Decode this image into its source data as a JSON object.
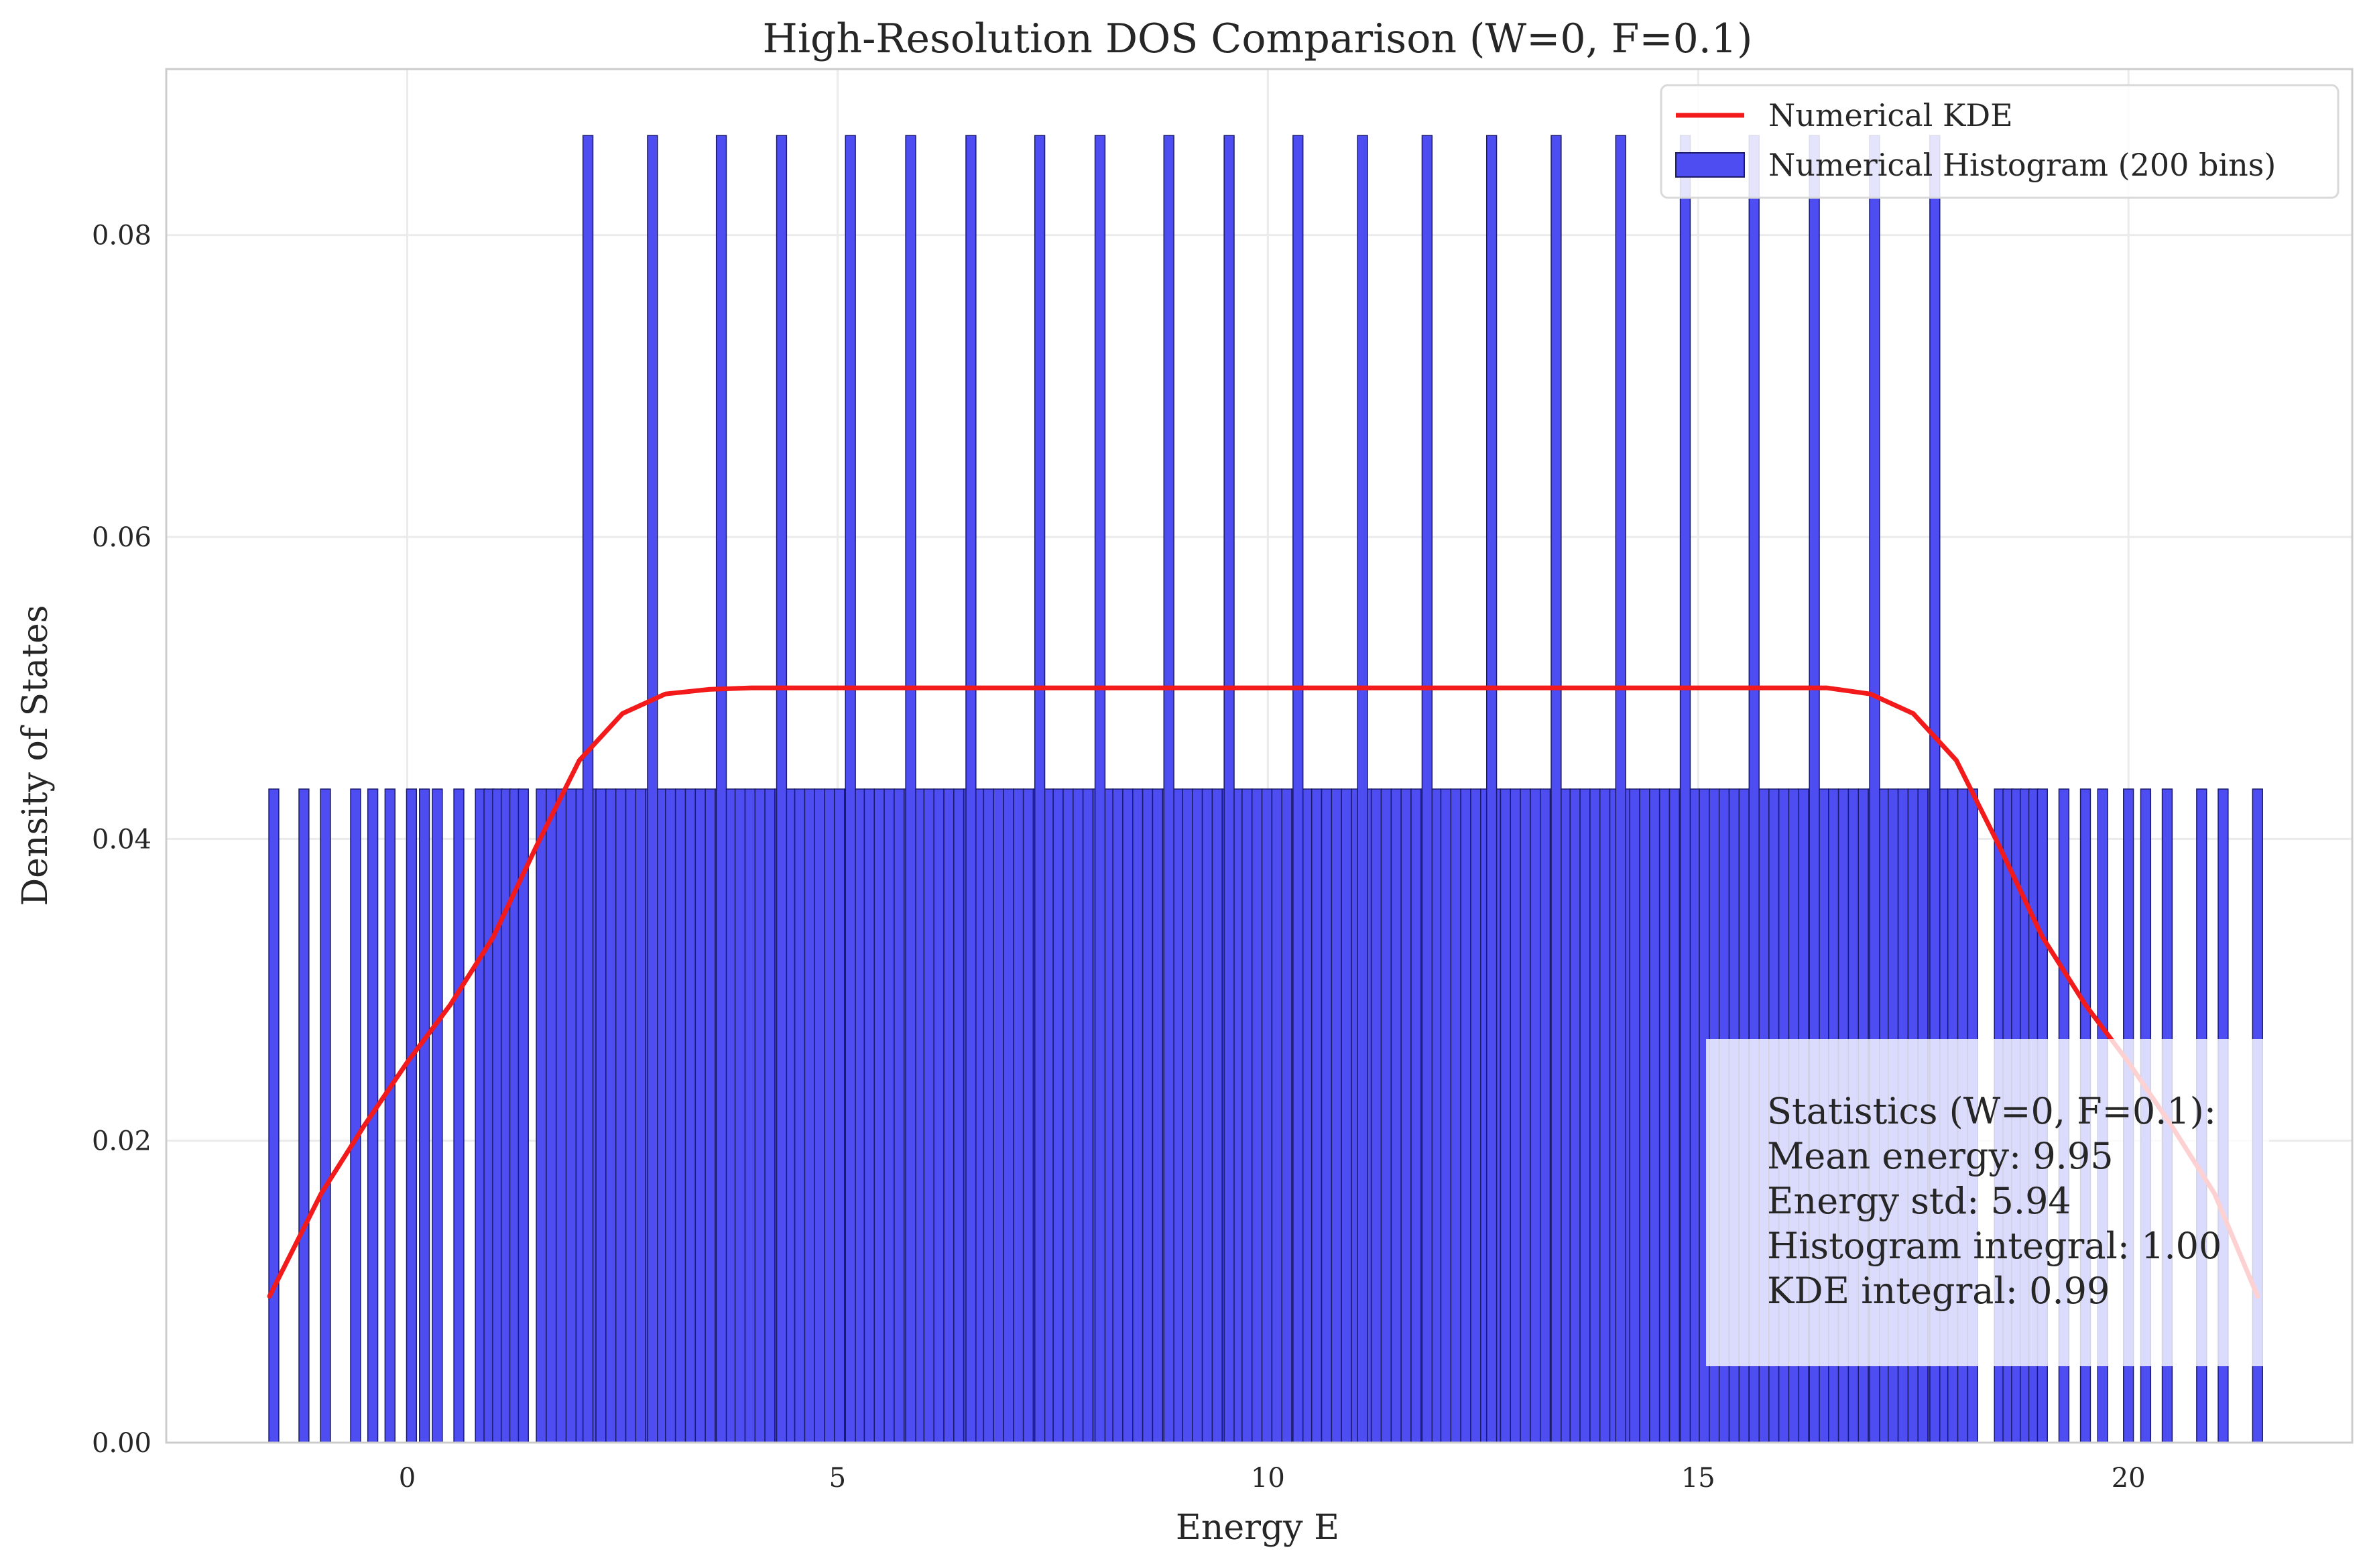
{
  "chart_data": {
    "type": "bar",
    "title": "High-Resolution DOS Comparison (W=0, F=0.1)",
    "xlabel": "Energy E",
    "ylabel": "Density of States",
    "xlim": [
      -2.8,
      22.6
    ],
    "ylim": [
      0,
      0.091
    ],
    "xticks": [
      0,
      5,
      10,
      15,
      20
    ],
    "xtick_labels": [
      "0",
      "5",
      "10",
      "15",
      "20"
    ],
    "yticks": [
      0.0,
      0.02,
      0.04,
      0.06,
      0.08
    ],
    "ytick_labels": [
      "0.00",
      "0.02",
      "0.04",
      "0.06",
      "0.08"
    ],
    "grid": true,
    "legend": {
      "placement": "top-right",
      "entries": [
        "Numerical KDE",
        "Numerical Histogram (200 bins)"
      ]
    },
    "colors": {
      "histogram_fill": "#4d4df2",
      "histogram_edge": "#1a1a66",
      "kde_line": "#f21a1a",
      "grid": "#ebebeb",
      "axes_edge": "#cccccc",
      "text": "#262626"
    },
    "series": [
      {
        "name": "Numerical Histogram (200 bins)",
        "type": "histogram",
        "bin_range": [
          -1.6,
          21.5
        ],
        "bin_count": 200,
        "low_height": 0.0433,
        "high_height": 0.0866,
        "occupied_ranges": [
          [
            1.5,
            18.3
          ]
        ],
        "sparse_bin_centers": [
          -1.55,
          -1.2,
          -0.95,
          -0.6,
          -0.4,
          -0.2,
          0.05,
          0.2,
          0.35,
          0.6,
          0.85,
          0.95,
          1.05,
          1.15,
          1.25,
          1.35,
          18.5,
          18.6,
          18.7,
          18.8,
          18.9,
          19.0,
          19.25,
          19.5,
          19.7,
          20.0,
          20.2,
          20.45,
          20.85,
          21.1,
          21.5
        ],
        "tall_bin_centers": [
          2.1,
          2.85,
          3.65,
          4.35,
          5.15,
          5.85,
          6.55,
          7.35,
          8.05,
          8.85,
          9.55,
          10.35,
          11.1,
          11.85,
          12.6,
          13.35,
          14.1,
          14.85,
          15.65,
          16.35,
          17.05,
          17.75
        ]
      },
      {
        "name": "Numerical KDE",
        "type": "line",
        "x": [
          -1.6,
          -1.0,
          -0.5,
          0.0,
          0.5,
          1.0,
          1.5,
          2.0,
          2.5,
          3.0,
          3.5,
          4.0,
          5.0,
          6.0,
          8.0,
          10.0,
          12.0,
          14.0,
          15.0,
          16.0,
          16.5,
          17.0,
          17.5,
          18.0,
          18.5,
          19.0,
          19.5,
          20.0,
          20.5,
          21.0,
          21.5
        ],
        "y": [
          0.0097,
          0.0165,
          0.021,
          0.0252,
          0.029,
          0.0335,
          0.0395,
          0.0452,
          0.0483,
          0.0496,
          0.0499,
          0.05,
          0.05,
          0.05,
          0.05,
          0.05,
          0.05,
          0.05,
          0.05,
          0.05,
          0.05,
          0.0496,
          0.0483,
          0.0452,
          0.0395,
          0.0335,
          0.029,
          0.0252,
          0.021,
          0.0165,
          0.0097
        ]
      }
    ],
    "annotation": {
      "placement": "lower-right",
      "lines": [
        "Statistics (W=0, F=0.1):",
        "Mean energy: 9.95",
        "Energy std: 5.94",
        "Histogram integral: 1.00",
        "KDE integral: 0.99"
      ]
    }
  }
}
